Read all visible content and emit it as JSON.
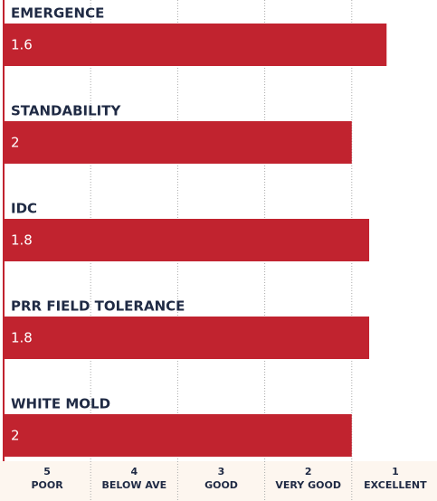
{
  "chart_data": {
    "type": "bar",
    "orientation": "horizontal",
    "categories": [
      "EMERGENCE",
      "STANDABILITY",
      "IDC",
      "PRR FIELD TOLERANCE",
      "WHITE MOLD"
    ],
    "values": [
      1.6,
      2,
      1.8,
      1.8,
      2
    ],
    "color": "#c1232f",
    "xlim": [
      6,
      1
    ],
    "xticks": [
      5,
      4,
      3,
      2,
      1
    ],
    "xtick_descriptions": [
      "POOR",
      "BELOW AVE",
      "GOOD",
      "VERY GOOD",
      "EXCELLENT"
    ],
    "grid": true
  }
}
